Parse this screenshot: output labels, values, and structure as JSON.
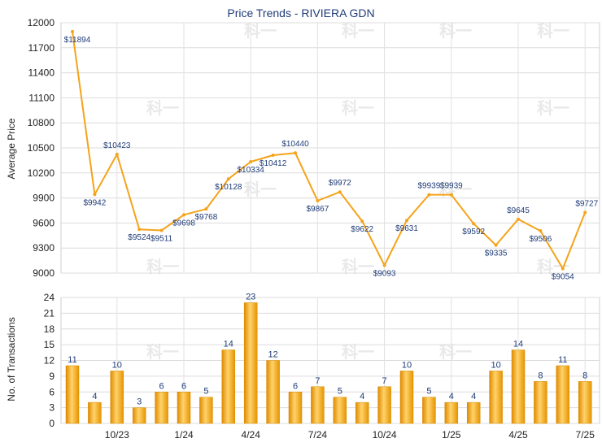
{
  "chart_data": [
    {
      "type": "line",
      "title": "Price Trends - RIVIERA GDN",
      "ylabel": "Average Price",
      "ylim": [
        9000,
        12000
      ],
      "yticks": [
        9000,
        9300,
        9600,
        9900,
        10200,
        10500,
        10800,
        11100,
        11400,
        11700,
        12000
      ],
      "values": [
        11894,
        9942,
        10423,
        9524,
        9511,
        9698,
        9768,
        10128,
        10334,
        10412,
        10440,
        9867,
        9972,
        9622,
        9093,
        9631,
        9939,
        9939,
        9592,
        9335,
        9645,
        9506,
        9054,
        9727
      ],
      "labels": [
        "$11894",
        "$9942",
        "$10423",
        "$9524",
        "$9511",
        "$9698",
        "$9768",
        "$10128",
        "$10334",
        "$10412",
        "$10440",
        "$9867",
        "$9972",
        "$9622",
        "$9093",
        "$9631",
        "$9939",
        "$9939",
        "$9592",
        "$9335",
        "$9645",
        "$9506",
        "$9054",
        "$9727"
      ],
      "line_color": "#f5a31a",
      "grid": true
    },
    {
      "type": "bar",
      "ylabel": "No. of Transactions",
      "ylim": [
        0,
        24
      ],
      "yticks": [
        0,
        3,
        6,
        9,
        12,
        15,
        18,
        21,
        24
      ],
      "values": [
        11,
        4,
        10,
        3,
        6,
        6,
        5,
        14,
        23,
        12,
        6,
        7,
        5,
        4,
        7,
        10,
        5,
        4,
        4,
        10,
        14,
        8,
        11,
        8
      ],
      "xtick_labels": [
        "10/23",
        "1/24",
        "4/24",
        "7/24",
        "10/24",
        "1/25",
        "4/25",
        "7/25"
      ],
      "xtick_index": [
        2,
        5,
        8,
        11,
        14,
        17,
        20,
        23
      ],
      "bar_color": "#f5a31a",
      "grid": true
    }
  ],
  "watermark": "科一"
}
